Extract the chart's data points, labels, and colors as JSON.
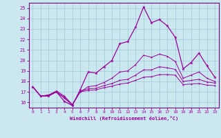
{
  "xlabel": "Windchill (Refroidissement éolien,°C)",
  "background_color": "#cbe8f0",
  "grid_color": "#a0c8d8",
  "line_color": "#990099",
  "spine_color": "#7a007a",
  "xlim": [
    -0.5,
    23.5
  ],
  "ylim": [
    15.5,
    25.5
  ],
  "x_ticks": [
    0,
    1,
    2,
    3,
    4,
    5,
    6,
    7,
    8,
    9,
    10,
    11,
    12,
    13,
    14,
    15,
    16,
    17,
    18,
    19,
    20,
    21,
    22,
    23
  ],
  "y_ticks": [
    16,
    17,
    18,
    19,
    20,
    21,
    22,
    23,
    24,
    25
  ],
  "series": [
    {
      "y": [
        17.5,
        16.6,
        16.6,
        17.0,
        16.1,
        15.7,
        17.2,
        18.9,
        18.8,
        19.4,
        20.0,
        21.6,
        21.8,
        23.2,
        25.1,
        23.6,
        23.9,
        23.3,
        22.2,
        19.2,
        19.8,
        20.7,
        19.5,
        18.4
      ]
    },
    {
      "y": [
        17.5,
        16.6,
        16.7,
        17.1,
        16.6,
        15.8,
        17.0,
        17.5,
        17.6,
        17.9,
        18.3,
        18.9,
        19.0,
        19.6,
        20.5,
        20.3,
        20.6,
        20.4,
        19.9,
        18.3,
        18.6,
        18.9,
        18.3,
        18.0
      ]
    },
    {
      "y": [
        17.5,
        16.6,
        16.7,
        17.0,
        16.4,
        15.75,
        17.05,
        17.3,
        17.35,
        17.6,
        17.8,
        18.1,
        18.2,
        18.6,
        19.1,
        19.1,
        19.4,
        19.3,
        19.15,
        18.0,
        18.1,
        18.2,
        17.95,
        17.85
      ]
    },
    {
      "y": [
        17.5,
        16.6,
        16.7,
        17.0,
        16.5,
        15.77,
        17.0,
        17.15,
        17.2,
        17.4,
        17.55,
        17.75,
        17.85,
        18.1,
        18.4,
        18.45,
        18.65,
        18.65,
        18.6,
        17.7,
        17.75,
        17.8,
        17.65,
        17.6
      ]
    }
  ]
}
